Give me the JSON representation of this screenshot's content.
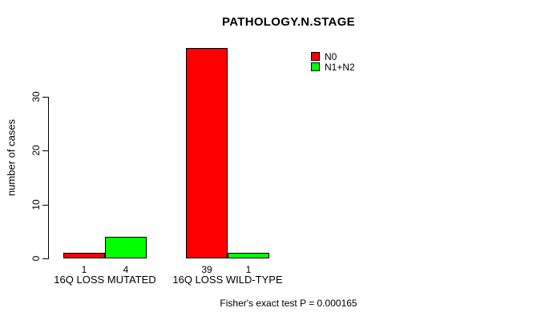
{
  "chart_data": {
    "type": "bar",
    "title": "PATHOLOGY.N.STAGE",
    "xlabel": "",
    "ylabel": "number of cases",
    "categories": [
      "16Q LOSS MUTATED",
      "16Q LOSS WILD-TYPE"
    ],
    "series": [
      {
        "name": "N0",
        "color": "#FF0000",
        "values": [
          1,
          39
        ]
      },
      {
        "name": "N1+N2",
        "color": "#00FF00",
        "values": [
          4,
          1
        ]
      }
    ],
    "bar_value_labels": [
      [
        "1",
        "4"
      ],
      [
        "39",
        "1"
      ]
    ],
    "yticks": [
      0,
      10,
      20,
      30
    ],
    "ylim": [
      0,
      39
    ],
    "grid": false,
    "legend_position": "top-right",
    "annotation": "Fisher's exact test P = 0.000165",
    "colors": {
      "background": "#FFFFFF",
      "axis": "#000000",
      "text": "#000000",
      "bar_border": "#000000"
    }
  }
}
